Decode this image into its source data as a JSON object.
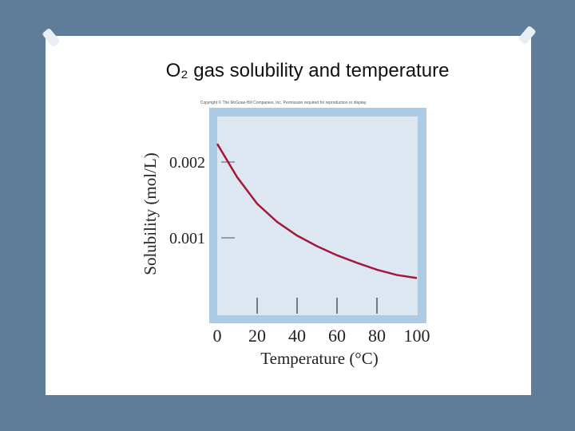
{
  "title": "O₂ gas solubility and temperature",
  "copyright": "Copyright © The McGraw-Hill Companies, Inc. Permission required for reproduction or display.",
  "chart_data": {
    "type": "line",
    "x_label": "Temperature (°C)",
    "y_label": "Solubility (mol/L)",
    "x": [
      0,
      10,
      20,
      30,
      40,
      50,
      60,
      70,
      80,
      90,
      100
    ],
    "series": [
      {
        "color": "#a3173a",
        "values": [
          0.00224,
          0.0018,
          0.00145,
          0.00121,
          0.00103,
          0.00089,
          0.00077,
          0.00067,
          0.00058,
          0.00051,
          0.00047
        ]
      }
    ],
    "xlim": [
      0,
      100
    ],
    "xticks": [
      0,
      20,
      40,
      60,
      80,
      100
    ],
    "ylim": [
      0,
      0.0026
    ],
    "yticks": [
      0.001,
      0.002
    ]
  }
}
